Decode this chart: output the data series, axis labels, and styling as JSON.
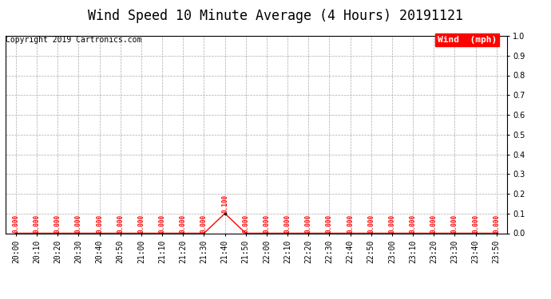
{
  "title": "Wind Speed 10 Minute Average (4 Hours) 20191121",
  "copyright_text": "Copyright 2019 Cartronics.com",
  "legend_label": "Wind  (mph)",
  "legend_bg": "#ff0000",
  "legend_fg": "#ffffff",
  "x_labels": [
    "20:00",
    "20:10",
    "20:20",
    "20:30",
    "20:40",
    "20:50",
    "21:00",
    "21:10",
    "21:20",
    "21:30",
    "21:40",
    "21:50",
    "22:00",
    "22:10",
    "22:20",
    "22:30",
    "22:40",
    "22:50",
    "23:00",
    "23:10",
    "23:20",
    "23:30",
    "23:40",
    "23:50"
  ],
  "wind_values": [
    0.0,
    0.0,
    0.0,
    0.0,
    0.0,
    0.0,
    0.0,
    0.0,
    0.0,
    0.0,
    0.1,
    0.0,
    0.0,
    0.0,
    0.0,
    0.0,
    0.0,
    0.0,
    0.0,
    0.0,
    0.0,
    0.0,
    0.0,
    0.0
  ],
  "ylim": [
    0.0,
    1.0
  ],
  "yticks": [
    0.0,
    0.1,
    0.2,
    0.3,
    0.4,
    0.5,
    0.6,
    0.7,
    0.8,
    0.9,
    1.0
  ],
  "line_color": "#ff0000",
  "marker_color": "#000000",
  "label_color": "#ff0000",
  "grid_color": "#aaaaaa",
  "bg_color": "#ffffff",
  "title_fontsize": 12,
  "copyright_fontsize": 7,
  "tick_label_fontsize": 7,
  "value_label_fontsize": 5.5,
  "legend_fontsize": 8
}
